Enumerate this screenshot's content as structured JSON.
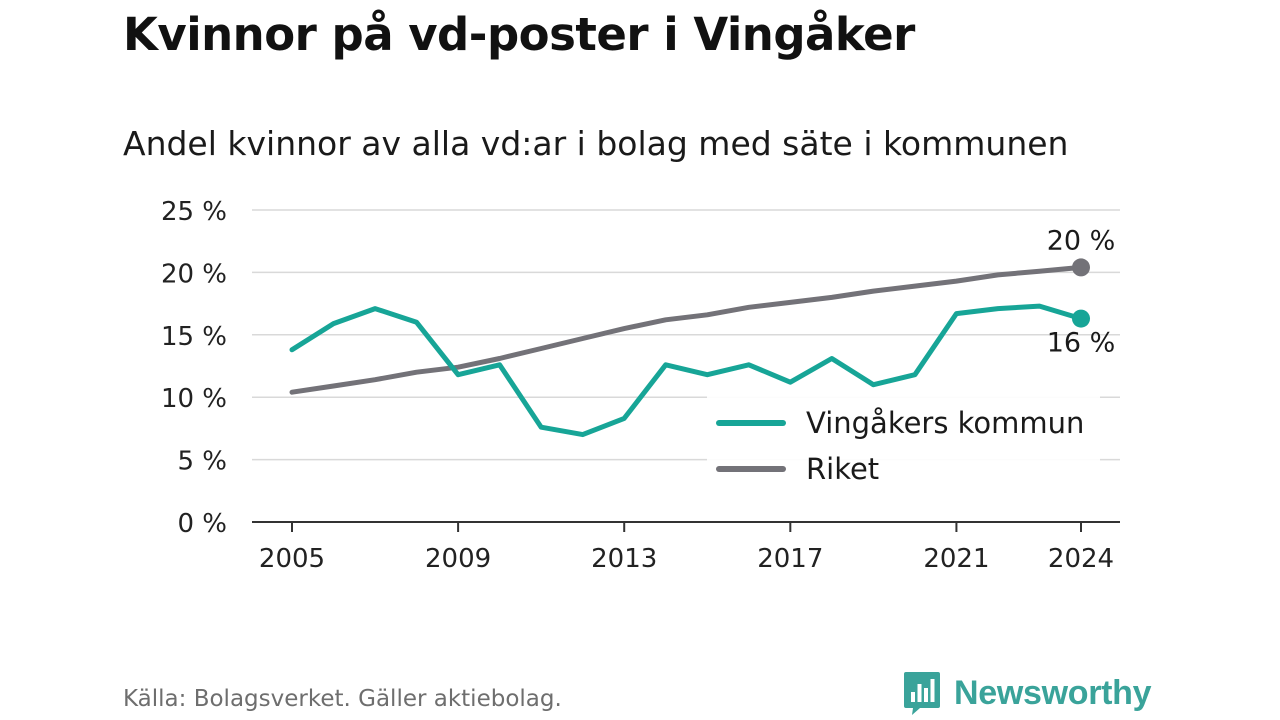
{
  "title": "Kvinnor på vd-poster i Vingåker",
  "subtitle": "Andel kvinnor av alla vd:ar i bolag med säte i kommunen",
  "source": "Källa: Bolagsverket. Gäller aktiebolag.",
  "brand": {
    "name": "Newsworthy",
    "logo_icon": "bar-chart-speech-bubble-icon"
  },
  "colors": {
    "kommun": "#17a597",
    "riket": "#737278",
    "grid": "#d9d9d9",
    "axis": "#333333",
    "brand": "#3aa39a"
  },
  "chart_data": {
    "type": "line",
    "x": [
      2005,
      2006,
      2007,
      2008,
      2009,
      2010,
      2011,
      2012,
      2013,
      2014,
      2015,
      2016,
      2017,
      2018,
      2019,
      2020,
      2021,
      2022,
      2023,
      2024
    ],
    "series": [
      {
        "key": "kommun",
        "name": "Vingåkers kommun",
        "values": [
          13.8,
          15.9,
          17.1,
          16.0,
          11.8,
          12.6,
          7.6,
          7.0,
          8.3,
          12.6,
          11.8,
          12.6,
          11.2,
          13.1,
          11.0,
          11.8,
          16.7,
          17.1,
          17.3,
          16.3
        ],
        "end_label": "16 %"
      },
      {
        "key": "riket",
        "name": "Riket",
        "values": [
          10.4,
          10.9,
          11.4,
          12.0,
          12.4,
          13.1,
          13.9,
          14.7,
          15.5,
          16.2,
          16.6,
          17.2,
          17.6,
          18.0,
          18.5,
          18.9,
          19.3,
          19.8,
          20.1,
          20.4
        ],
        "end_label": "20 %"
      }
    ],
    "xticks": [
      2005,
      2009,
      2013,
      2017,
      2021,
      2024
    ],
    "xtick_labels": [
      "2005",
      "2009",
      "2013",
      "2017",
      "2021",
      "2024"
    ],
    "yticks": [
      0,
      5,
      10,
      15,
      20,
      25
    ],
    "ytick_labels": [
      "0 %",
      "5 %",
      "10 %",
      "15 %",
      "20 %",
      "25 %"
    ],
    "ylim": [
      0,
      25
    ],
    "xlabel": "",
    "ylabel": "",
    "grid": true,
    "legend_position": "bottom-right"
  }
}
